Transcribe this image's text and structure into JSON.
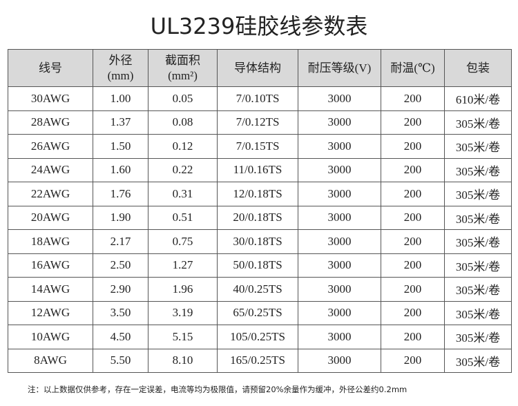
{
  "header": {
    "title": "UL3239硅胶线参数表"
  },
  "table": {
    "headers": [
      [
        "线号"
      ],
      [
        "外径",
        "(mm)"
      ],
      [
        "截面积",
        "(mm²)"
      ],
      [
        "导体结构"
      ],
      [
        "耐压等级(V)"
      ],
      [
        "耐温(℃)"
      ],
      [
        "包装"
      ]
    ],
    "rows": [
      [
        "30AWG",
        "1.00",
        "0.05",
        "7/0.10TS",
        "3000",
        "200",
        "610米/卷"
      ],
      [
        "28AWG",
        "1.37",
        "0.08",
        "7/0.12TS",
        "3000",
        "200",
        "305米/卷"
      ],
      [
        "26AWG",
        "1.50",
        "0.12",
        "7/0.15TS",
        "3000",
        "200",
        "305米/卷"
      ],
      [
        "24AWG",
        "1.60",
        "0.22",
        "11/0.16TS",
        "3000",
        "200",
        "305米/卷"
      ],
      [
        "22AWG",
        "1.76",
        "0.31",
        "12/0.18TS",
        "3000",
        "200",
        "305米/卷"
      ],
      [
        "20AWG",
        "1.90",
        "0.51",
        "20/0.18TS",
        "3000",
        "200",
        "305米/卷"
      ],
      [
        "18AWG",
        "2.17",
        "0.75",
        "30/0.18TS",
        "3000",
        "200",
        "305米/卷"
      ],
      [
        "16AWG",
        "2.50",
        "1.27",
        "50/0.18TS",
        "3000",
        "200",
        "305米/卷"
      ],
      [
        "14AWG",
        "2.90",
        "1.96",
        "40/0.25TS",
        "3000",
        "200",
        "305米/卷"
      ],
      [
        "12AWG",
        "3.50",
        "3.19",
        "65/0.25TS",
        "3000",
        "200",
        "305米/卷"
      ],
      [
        "10AWG",
        "4.50",
        "5.15",
        "105/0.25TS",
        "3000",
        "200",
        "305米/卷"
      ],
      [
        "8AWG",
        "5.50",
        "8.10",
        "165/0.25TS",
        "3000",
        "200",
        "305米/卷"
      ]
    ]
  },
  "note": "注：以上数据仅供参考，存在一定误差，电流等均为极限值，请预留20%余量作为缓冲，外径公差约0.2mm"
}
